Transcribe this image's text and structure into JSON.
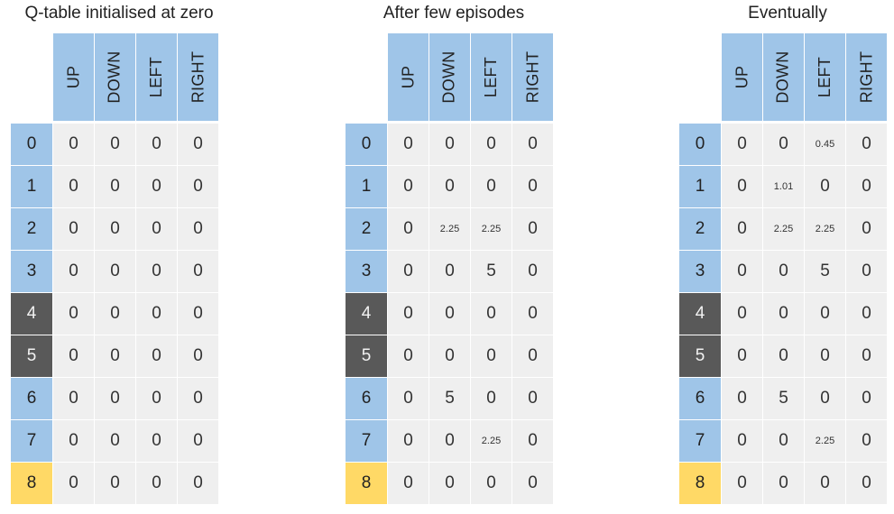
{
  "actions": [
    "UP",
    "DOWN",
    "LEFT",
    "RIGHT"
  ],
  "states": [
    {
      "label": "0",
      "kind": "normal"
    },
    {
      "label": "1",
      "kind": "normal"
    },
    {
      "label": "2",
      "kind": "normal"
    },
    {
      "label": "3",
      "kind": "normal"
    },
    {
      "label": "4",
      "kind": "wall"
    },
    {
      "label": "5",
      "kind": "wall"
    },
    {
      "label": "6",
      "kind": "normal"
    },
    {
      "label": "7",
      "kind": "normal"
    },
    {
      "label": "8",
      "kind": "goal"
    }
  ],
  "colors": {
    "header": "#9fc5e8",
    "state_normal": "#9fc5e8",
    "state_wall": "#595959",
    "state_goal": "#ffd966",
    "cell": "#efefef"
  },
  "tables": [
    {
      "title": "Q-table initialised at zero",
      "rows": [
        [
          "0",
          "0",
          "0",
          "0"
        ],
        [
          "0",
          "0",
          "0",
          "0"
        ],
        [
          "0",
          "0",
          "0",
          "0"
        ],
        [
          "0",
          "0",
          "0",
          "0"
        ],
        [
          "0",
          "0",
          "0",
          "0"
        ],
        [
          "0",
          "0",
          "0",
          "0"
        ],
        [
          "0",
          "0",
          "0",
          "0"
        ],
        [
          "0",
          "0",
          "0",
          "0"
        ],
        [
          "0",
          "0",
          "0",
          "0"
        ]
      ]
    },
    {
      "title": "After few episodes",
      "rows": [
        [
          "0",
          "0",
          "0",
          "0"
        ],
        [
          "0",
          "0",
          "0",
          "0"
        ],
        [
          "0",
          "2.25",
          "2.25",
          "0"
        ],
        [
          "0",
          "0",
          "5",
          "0"
        ],
        [
          "0",
          "0",
          "0",
          "0"
        ],
        [
          "0",
          "0",
          "0",
          "0"
        ],
        [
          "0",
          "5",
          "0",
          "0"
        ],
        [
          "0",
          "0",
          "2.25",
          "0"
        ],
        [
          "0",
          "0",
          "0",
          "0"
        ]
      ]
    },
    {
      "title": "Eventually",
      "rows": [
        [
          "0",
          "0",
          "0.45",
          "0"
        ],
        [
          "0",
          "1.01",
          "0",
          "0"
        ],
        [
          "0",
          "2.25",
          "2.25",
          "0"
        ],
        [
          "0",
          "0",
          "5",
          "0"
        ],
        [
          "0",
          "0",
          "0",
          "0"
        ],
        [
          "0",
          "0",
          "0",
          "0"
        ],
        [
          "0",
          "5",
          "0",
          "0"
        ],
        [
          "0",
          "0",
          "2.25",
          "0"
        ],
        [
          "0",
          "0",
          "0",
          "0"
        ]
      ]
    }
  ]
}
